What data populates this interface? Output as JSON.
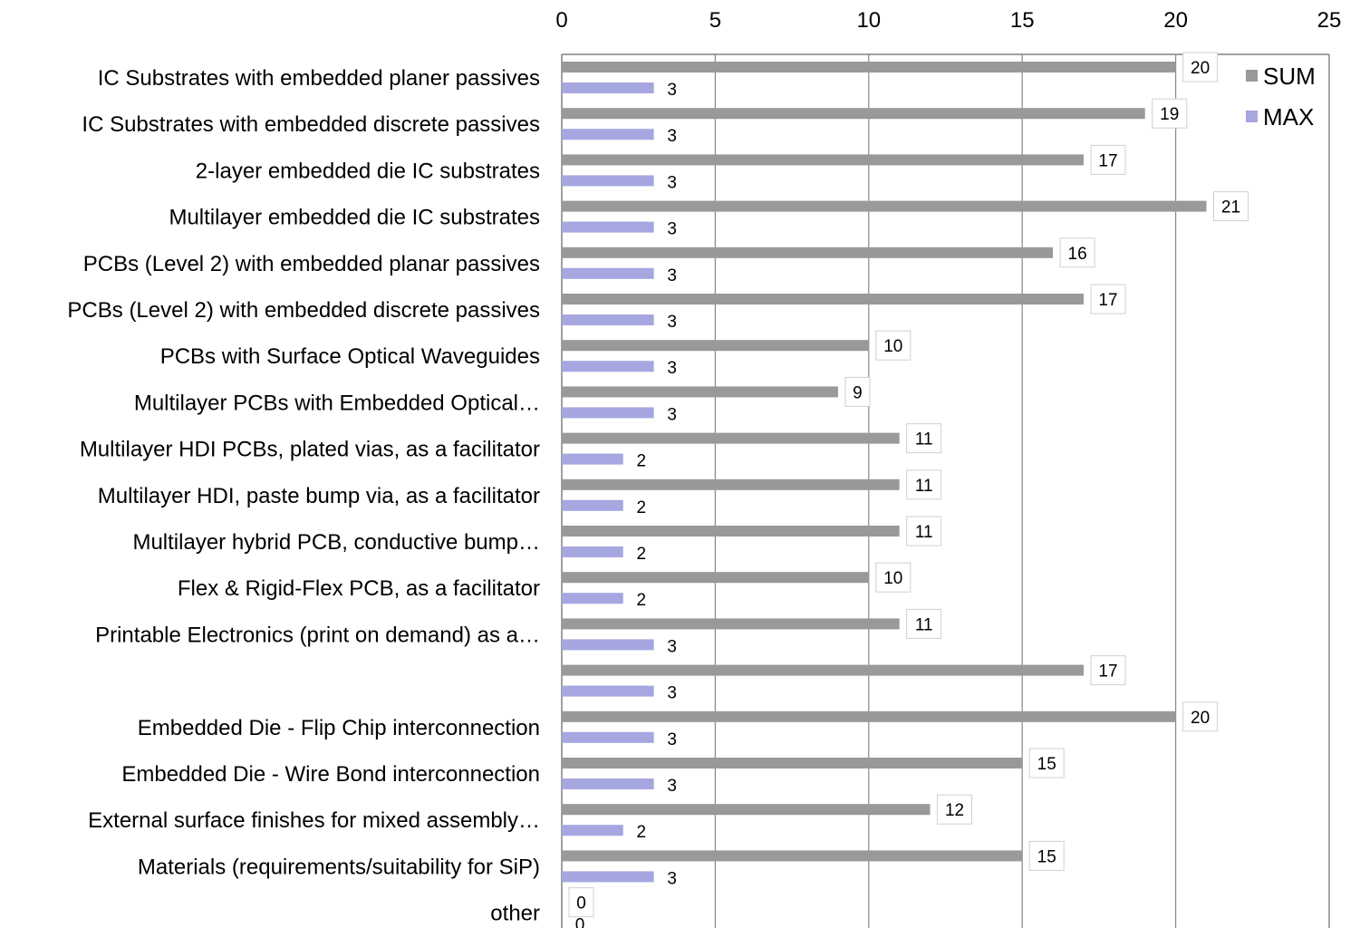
{
  "chart_data": {
    "type": "bar",
    "orientation": "horizontal",
    "categories": [
      "IC Substrates with embedded planer passives",
      "IC Substrates with embedded discrete passives",
      "2-layer embedded die IC substrates",
      "Multilayer embedded die IC substrates",
      "PCBs (Level 2) with embedded planar passives",
      "PCBs (Level 2) with embedded discrete passives",
      "PCBs with Surface Optical Waveguides",
      "Multilayer PCBs with Embedded Optical…",
      "Multilayer HDI PCBs, plated vias, as a facilitator",
      "Multilayer HDI, paste bump via, as a facilitator",
      "Multilayer hybrid PCB, conductive bump…",
      "Flex & Rigid-Flex PCB, as a facilitator",
      "Printable Electronics (print on demand) as a…",
      "",
      "Embedded Die - Flip Chip interconnection",
      "Embedded Die - Wire Bond interconnection",
      "External surface finishes for mixed assembly…",
      "Materials (requirements/suitability for SiP)",
      "other"
    ],
    "series": [
      {
        "name": "SUM",
        "color": "#999999",
        "values": [
          20,
          19,
          17,
          21,
          16,
          17,
          10,
          9,
          11,
          11,
          11,
          10,
          11,
          17,
          20,
          15,
          12,
          15,
          0
        ]
      },
      {
        "name": "MAX",
        "color": "#a6a6e0",
        "values": [
          3,
          3,
          3,
          3,
          3,
          3,
          3,
          3,
          2,
          2,
          2,
          2,
          3,
          3,
          3,
          3,
          2,
          3,
          0
        ]
      }
    ],
    "xlim": [
      0,
      25
    ],
    "xticks": [
      0,
      5,
      10,
      15,
      20,
      25
    ],
    "x_axis_position": "top",
    "grid": true,
    "legend": "top-right",
    "data_labels": true,
    "title": "",
    "xlabel": "",
    "ylabel": ""
  }
}
